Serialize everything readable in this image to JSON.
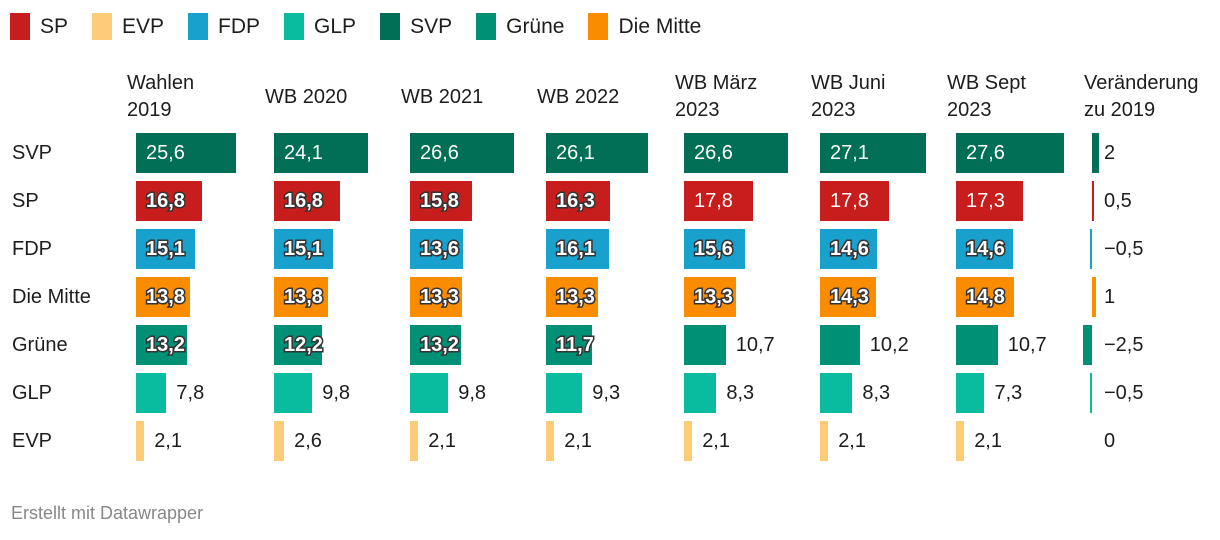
{
  "chart_data": {
    "type": "table",
    "legend": [
      {
        "name": "SP",
        "color": "#c71e1d"
      },
      {
        "name": "EVP",
        "color": "#fecb79"
      },
      {
        "name": "FDP",
        "color": "#18a1cd"
      },
      {
        "name": "GLP",
        "color": "#09bb9f"
      },
      {
        "name": "SVP",
        "color": "#006f55"
      },
      {
        "name": "Grüne",
        "color": "#009076"
      },
      {
        "name": "Die Mitte",
        "color": "#fa8c00"
      }
    ],
    "columns": [
      "Wahlen 2019",
      "WB 2020",
      "WB 2021",
      "WB 2022",
      "WB März 2023",
      "WB Juni 2023",
      "WB Sept 2023",
      "Veränderung zu 2019"
    ],
    "rows": [
      {
        "party": "SVP",
        "values": [
          "25,6",
          "24,1",
          "26,6",
          "26,1",
          "26,6",
          "27,1",
          "27,6"
        ],
        "change": "2"
      },
      {
        "party": "SP",
        "values": [
          "16,8",
          "16,8",
          "15,8",
          "16,3",
          "17,8",
          "17,8",
          "17,3"
        ],
        "change": "0,5"
      },
      {
        "party": "FDP",
        "values": [
          "15,1",
          "15,1",
          "13,6",
          "16,1",
          "15,6",
          "14,6",
          "14,6"
        ],
        "change": "−0,5"
      },
      {
        "party": "Die Mitte",
        "values": [
          "13,8",
          "13,8",
          "13,3",
          "13,3",
          "13,3",
          "14,3",
          "14,8"
        ],
        "change": "1"
      },
      {
        "party": "Grüne",
        "values": [
          "13,2",
          "12,2",
          "13,2",
          "11,7",
          "10,7",
          "10,2",
          "10,7"
        ],
        "change": "−2,5"
      },
      {
        "party": "GLP",
        "values": [
          "7,8",
          "9,8",
          "9,8",
          "9,3",
          "8,3",
          "8,3",
          "7,3"
        ],
        "change": "−0,5"
      },
      {
        "party": "EVP",
        "values": [
          "2,1",
          "2,6",
          "2,1",
          "2,1",
          "2,1",
          "2,1",
          "2,1"
        ],
        "change": "0"
      }
    ]
  },
  "footer": "Erstellt mit Datawrapper"
}
